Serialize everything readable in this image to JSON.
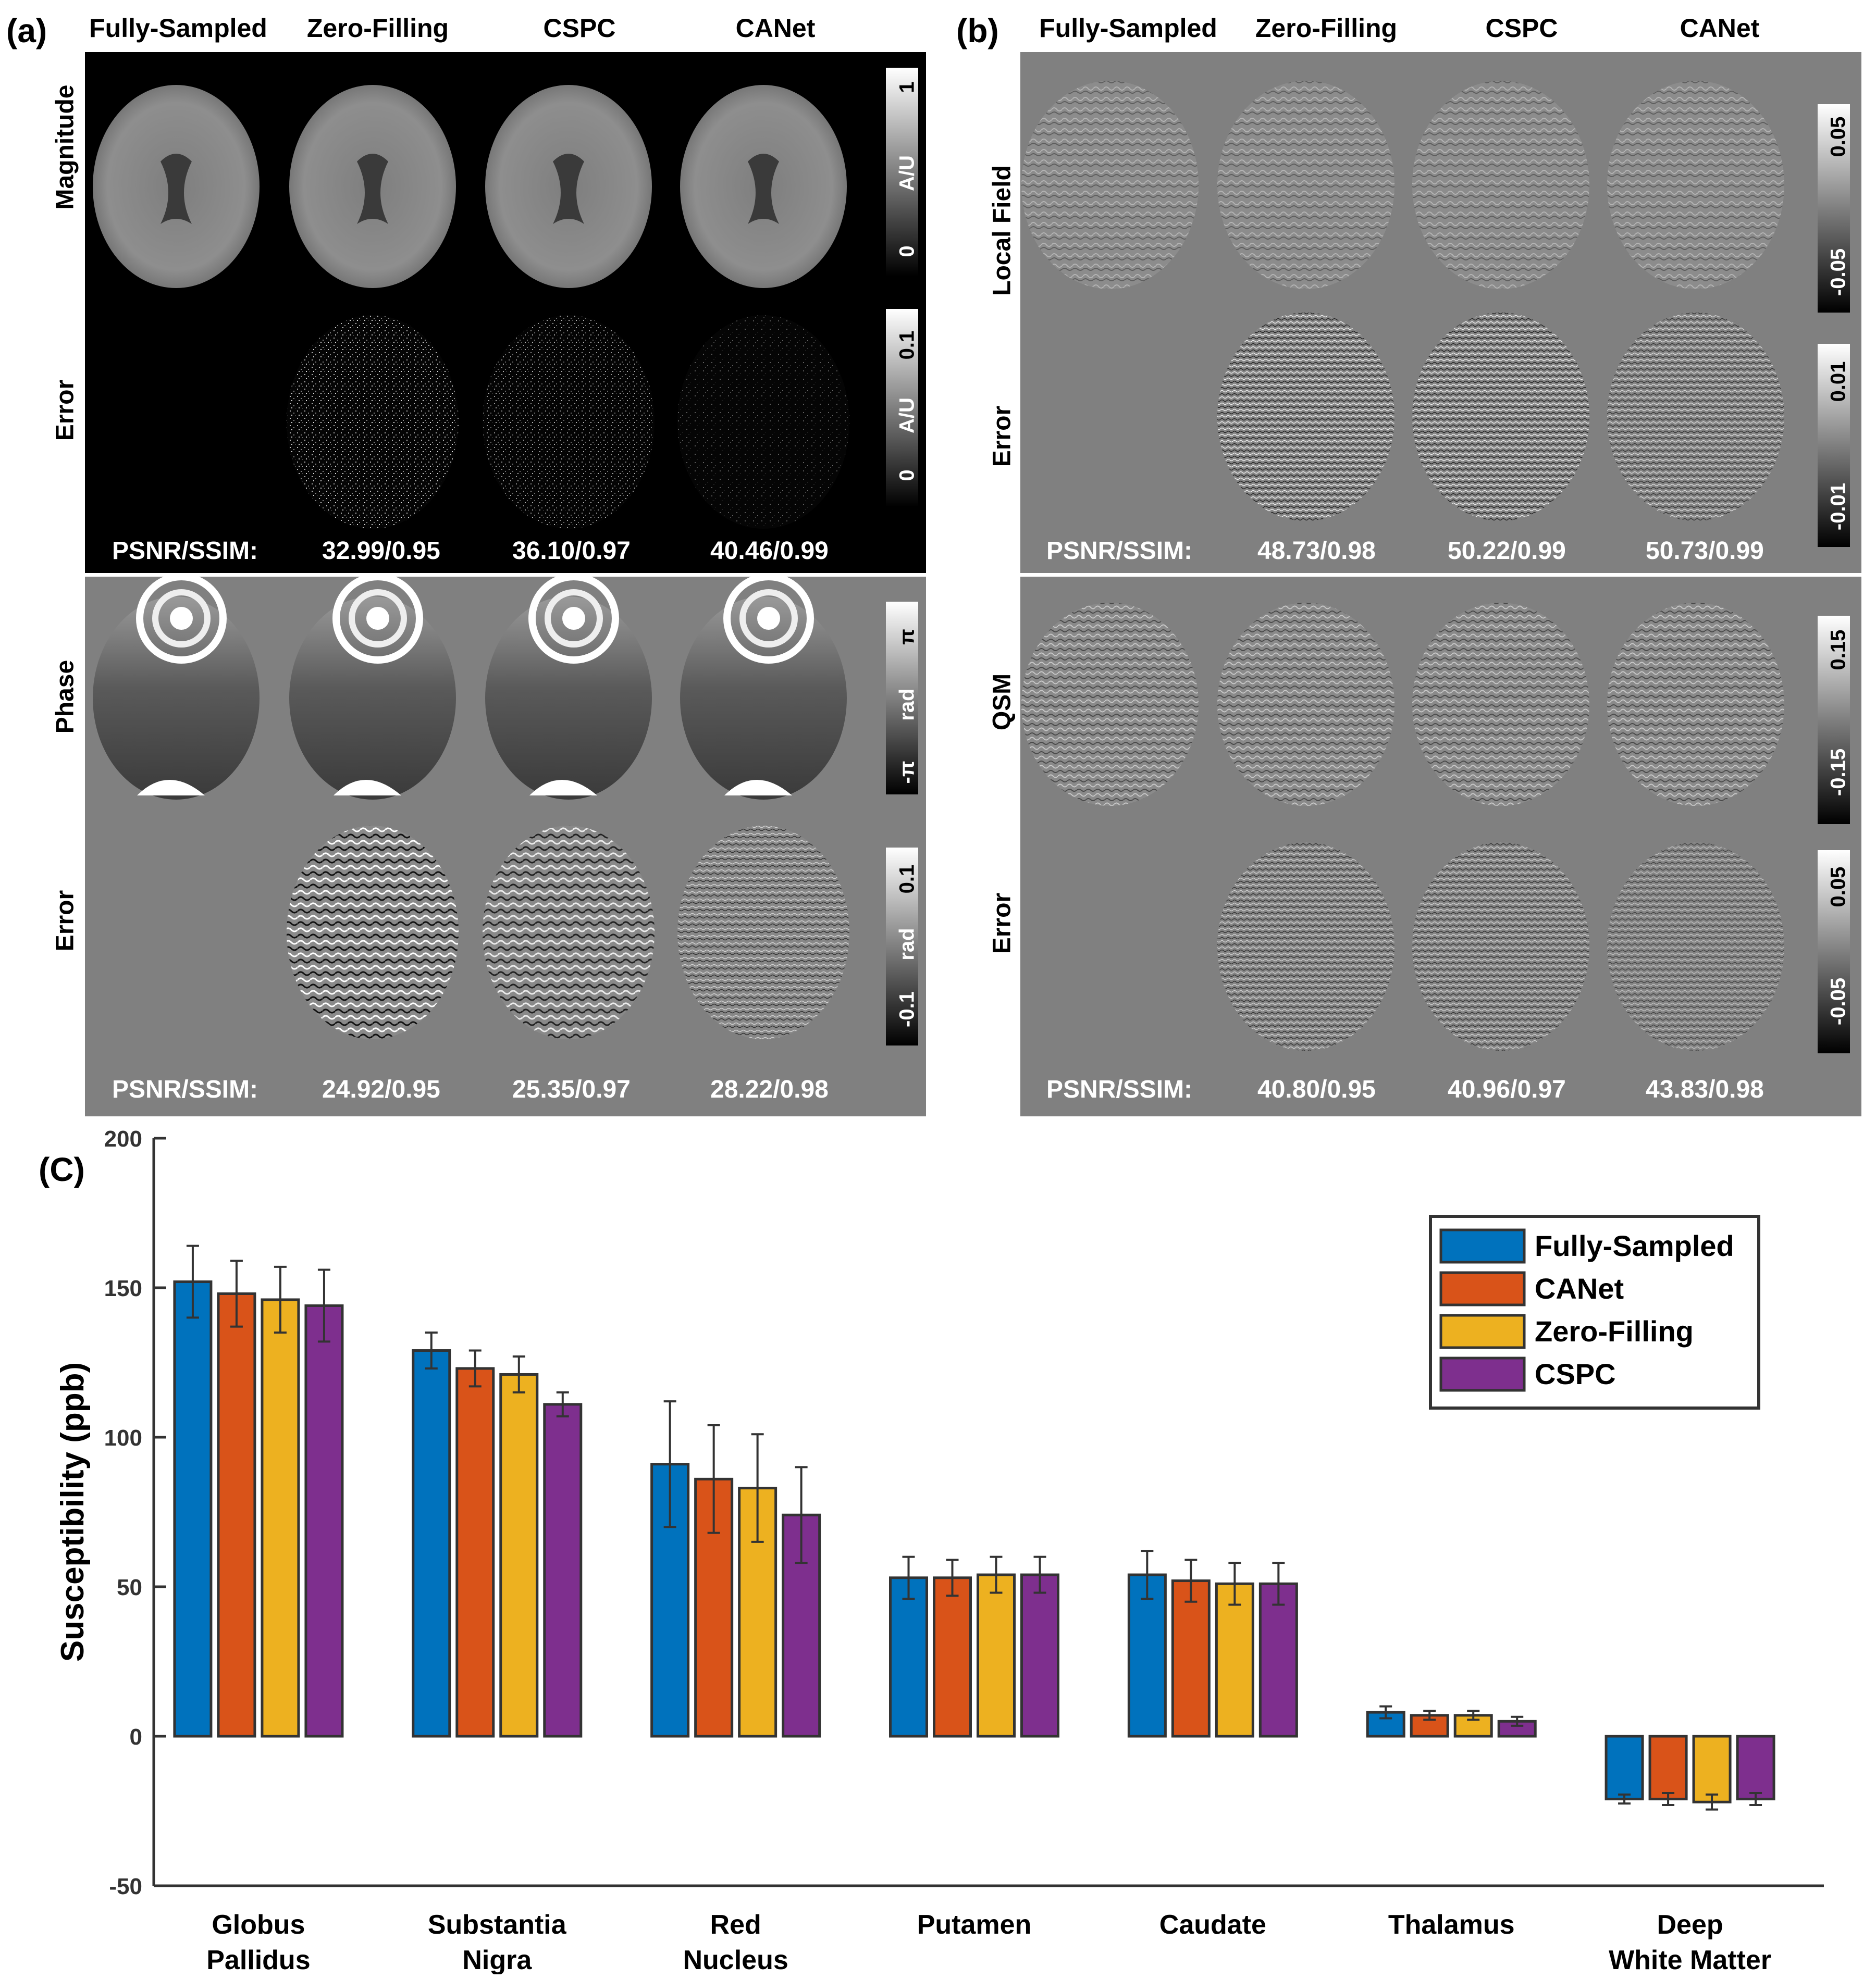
{
  "panel_a": {
    "letter": "(a)",
    "columns": [
      "Fully-Sampled",
      "Zero-Filling",
      "CSPC",
      "CANet"
    ],
    "magnitude": {
      "row_labels": [
        "Magnitude",
        "Error"
      ],
      "colorbar_top": {
        "max": "1",
        "min": "0",
        "unit": "A/U"
      },
      "colorbar_bottom": {
        "max": "0.1",
        "min": "0",
        "unit": "A/U"
      },
      "metric_label": "PSNR/SSIM:",
      "metrics": [
        "32.99/0.95",
        "36.10/0.97",
        "40.46/0.99"
      ]
    },
    "phase": {
      "row_labels": [
        "Phase",
        "Error"
      ],
      "colorbar_top": {
        "max": "π",
        "min": "-π",
        "unit": "rad"
      },
      "colorbar_bottom": {
        "max": "0.1",
        "min": "-0.1",
        "unit": "rad"
      },
      "metric_label": "PSNR/SSIM:",
      "metrics": [
        "24.92/0.95",
        "25.35/0.97",
        "28.22/0.98"
      ]
    }
  },
  "panel_b": {
    "letter": "(b)",
    "columns": [
      "Fully-Sampled",
      "Zero-Filling",
      "CSPC",
      "CANet"
    ],
    "local_field": {
      "row_labels": [
        "Local Field",
        "Error"
      ],
      "colorbar_top": {
        "max": "0.05",
        "min": "-0.05"
      },
      "colorbar_bottom": {
        "max": "0.01",
        "min": "-0.01"
      },
      "metric_label": "PSNR/SSIM:",
      "metrics": [
        "48.73/0.98",
        "50.22/0.99",
        "50.73/0.99"
      ]
    },
    "qsm": {
      "row_labels": [
        "QSM",
        "Error"
      ],
      "colorbar_top": {
        "max": "0.15",
        "min": "-0.15"
      },
      "colorbar_bottom": {
        "max": "0.05",
        "min": "-0.05"
      },
      "metric_label": "PSNR/SSIM:",
      "metrics": [
        "40.80/0.95",
        "40.96/0.97",
        "43.83/0.98"
      ]
    }
  },
  "panel_c": {
    "letter": "(C)"
  },
  "chart_data": {
    "type": "bar",
    "title": "",
    "xlabel": "",
    "ylabel": "Susceptibility (ppb)",
    "ylim": [
      -50,
      200
    ],
    "yticks": [
      -50,
      0,
      50,
      100,
      150,
      200
    ],
    "legend_position": "top-right",
    "categories": [
      [
        "Globus",
        "Pallidus"
      ],
      [
        "Substantia",
        "Nigra"
      ],
      [
        "Red",
        "Nucleus"
      ],
      [
        "Putamen"
      ],
      [
        "Caudate"
      ],
      [
        "Thalamus"
      ],
      [
        "Deep",
        "White Matter"
      ]
    ],
    "series": [
      {
        "name": "Fully-Sampled",
        "color": "#0072BD",
        "values": [
          152,
          129,
          91,
          53,
          54,
          8,
          -21
        ],
        "errors": [
          12,
          6,
          21,
          7,
          8,
          2,
          1.5
        ]
      },
      {
        "name": "CANet",
        "color": "#D95319",
        "values": [
          148,
          123,
          86,
          53,
          52,
          7,
          -21
        ],
        "errors": [
          11,
          6,
          18,
          6,
          7,
          1.5,
          2
        ]
      },
      {
        "name": "Zero-Filling",
        "color": "#EDB120",
        "values": [
          146,
          121,
          83,
          54,
          51,
          7,
          -22
        ],
        "errors": [
          11,
          6,
          18,
          6,
          7,
          1.5,
          2.5
        ]
      },
      {
        "name": "CSPC",
        "color": "#7E2F8E",
        "values": [
          144,
          111,
          74,
          54,
          51,
          5,
          -21
        ],
        "errors": [
          12,
          4,
          16,
          6,
          7,
          1.5,
          2
        ]
      }
    ]
  }
}
